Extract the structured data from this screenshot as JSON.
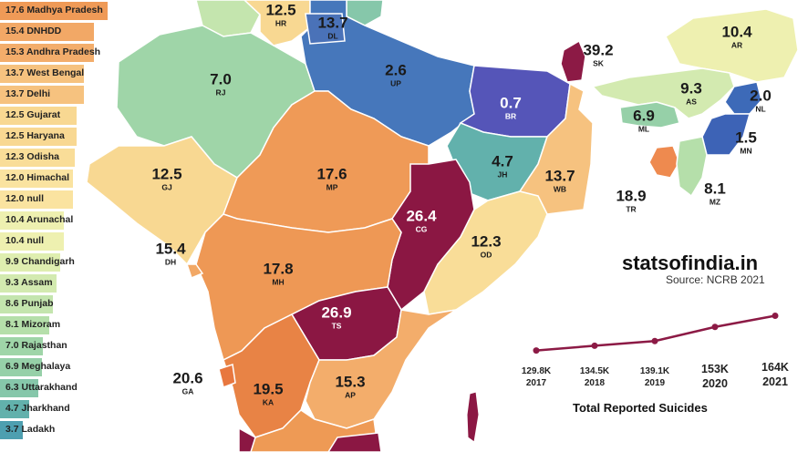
{
  "legend": [
    {
      "text": "17.6 Madhya Pradesh",
      "value": 17.6,
      "color": "#ef9a57"
    },
    {
      "text": "15.4 DNHDD",
      "value": 15.4,
      "color": "#f2a866"
    },
    {
      "text": "15.3 Andhra Pradesh",
      "value": 15.3,
      "color": "#f3ad6b"
    },
    {
      "text": "13.7 West Bengal",
      "value": 13.7,
      "color": "#f6c27f"
    },
    {
      "text": "13.7 Delhi",
      "value": 13.7,
      "color": "#f6c27f"
    },
    {
      "text": "12.5 Gujarat",
      "value": 12.5,
      "color": "#f8d892"
    },
    {
      "text": "12.5 Haryana",
      "value": 12.5,
      "color": "#f8d892"
    },
    {
      "text": "12.3 Odisha",
      "value": 12.3,
      "color": "#f9dd98"
    },
    {
      "text": "12.0 Himachal",
      "value": 12.0,
      "color": "#fae3a0"
    },
    {
      "text": "12.0 null",
      "value": 12.0,
      "color": "#fae3a0"
    },
    {
      "text": "10.4 Arunachal",
      "value": 10.4,
      "color": "#eef0b0"
    },
    {
      "text": "10.4 null",
      "value": 10.4,
      "color": "#eef0b0"
    },
    {
      "text": "9.9 Chandigarh",
      "value": 9.9,
      "color": "#dfeeb0"
    },
    {
      "text": "9.3 Assam",
      "value": 9.3,
      "color": "#d3eab0"
    },
    {
      "text": "8.6 Punjab",
      "value": 8.6,
      "color": "#c4e5ae"
    },
    {
      "text": "8.1 Mizoram",
      "value": 8.1,
      "color": "#b5dfaa"
    },
    {
      "text": "7.0 Rajasthan",
      "value": 7.0,
      "color": "#9fd5a8"
    },
    {
      "text": "6.9 Meghalaya",
      "value": 6.9,
      "color": "#96d0a8"
    },
    {
      "text": "6.3 Uttarakhand",
      "value": 6.3,
      "color": "#86c7aa"
    },
    {
      "text": "4.7 Jharkhand",
      "value": 4.7,
      "color": "#62b1ac"
    },
    {
      "text": "3.7 Ladakh",
      "value": 3.7,
      "color": "#4e9fb0"
    }
  ],
  "regions": [
    {
      "value": "12.5",
      "code": "HR",
      "fill": "#f8d892"
    },
    {
      "value": "13.7",
      "code": "DL",
      "fill": "#f6c27f"
    },
    {
      "value": "7.0",
      "code": "RJ",
      "fill": "#9fd5a8"
    },
    {
      "value": "2.6",
      "code": "UP",
      "fill": "#4677bb"
    },
    {
      "value": "0.7",
      "code": "BR",
      "fill": "#5555b8"
    },
    {
      "value": "39.2",
      "code": "SK",
      "fill": "#8c1a45"
    },
    {
      "value": "10.4",
      "code": "AR",
      "fill": "#eef0b0"
    },
    {
      "value": "9.3",
      "code": "AS",
      "fill": "#d3eab0"
    },
    {
      "value": "2.0",
      "code": "NL",
      "fill": "#3d6ab8"
    },
    {
      "value": "6.9",
      "code": "ML",
      "fill": "#96d0a8"
    },
    {
      "value": "1.5",
      "code": "MN",
      "fill": "#3d63b6"
    },
    {
      "value": "12.5",
      "code": "GJ",
      "fill": "#f8d892"
    },
    {
      "value": "17.6",
      "code": "MP",
      "fill": "#ef9a57"
    },
    {
      "value": "4.7",
      "code": "JH",
      "fill": "#62b1ac"
    },
    {
      "value": "13.7",
      "code": "WB",
      "fill": "#f6c27f"
    },
    {
      "value": "18.9",
      "code": "TR",
      "fill": "#ee8a4f"
    },
    {
      "value": "8.1",
      "code": "MZ",
      "fill": "#b5dfaa"
    },
    {
      "value": "26.4",
      "code": "CG",
      "fill": "#8b1743"
    },
    {
      "value": "12.3",
      "code": "OD",
      "fill": "#f9dd98"
    },
    {
      "value": "15.4",
      "code": "DH",
      "fill": "#f2a866"
    },
    {
      "value": "17.8",
      "code": "MH",
      "fill": "#ee9855"
    },
    {
      "value": "26.9",
      "code": "TS",
      "fill": "#8b1743"
    },
    {
      "value": "20.6",
      "code": "GA",
      "fill": "#e8773f"
    },
    {
      "value": "19.5",
      "code": "KA",
      "fill": "#e88345"
    },
    {
      "value": "15.3",
      "code": "AP",
      "fill": "#f3ad6b"
    }
  ],
  "brand": {
    "name": "statsofindia.in",
    "source": "Source: NCRB 2021"
  },
  "chart_data": {
    "type": "line",
    "title": "Total Reported Suicides",
    "x": [
      "2017",
      "2018",
      "2019",
      "2020",
      "2021"
    ],
    "value_labels": [
      "129.8K",
      "134.5K",
      "139.1K",
      "153K",
      "164K"
    ],
    "values": [
      129.8,
      134.5,
      139.1,
      153,
      164
    ],
    "line_color": "#8c1a45"
  }
}
